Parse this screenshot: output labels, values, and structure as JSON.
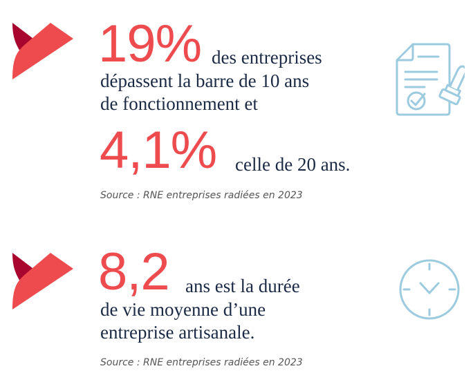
{
  "section1": {
    "big_percent_1": "19%",
    "line_1": "des entreprises",
    "line_2": "dépassent la barre de 10 ans",
    "line_3": "de fonctionnement et",
    "big_percent_2": "4,1%",
    "line_4": "celle de 20 ans.",
    "source": "Source : RNE entreprises radiées en 2023",
    "icon": "document-stamp-icon"
  },
  "section2": {
    "big_number": "8,2",
    "line_1": "ans est la durée",
    "line_2": "de vie moyenne d’une",
    "line_3": "entreprise artisanale.",
    "source": "Source : RNE entreprises radiées en 2023",
    "icon": "clock-icon"
  },
  "colors": {
    "accent_red": "#ee4b4f",
    "dark_red": "#a8062f",
    "text": "#1b2a44",
    "icon_blue": "#9ccbe0"
  }
}
